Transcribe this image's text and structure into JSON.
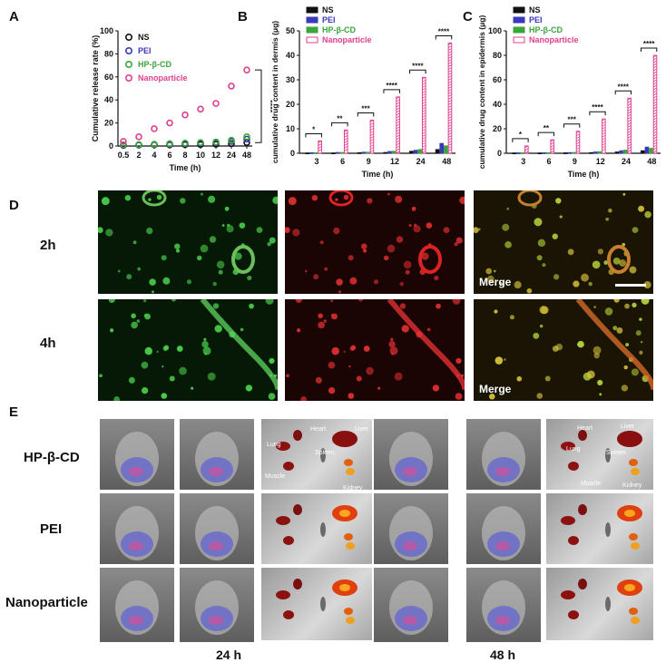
{
  "panels": {
    "A": "A",
    "B": "B",
    "C": "C",
    "D": "D",
    "E": "E"
  },
  "colors": {
    "NS": "#111111",
    "PEI": "#3a3ab8",
    "HPBCD": "#3aa63a",
    "Nanoparticle": "#e0408f"
  },
  "chart_data": [
    {
      "type": "scatter",
      "panel": "A",
      "ylabel": "Cumulative release rate (%)",
      "xlabel": "Time (h)",
      "categories": [
        "0.5",
        "2",
        "4",
        "6",
        "8",
        "10",
        "12",
        "24",
        "48"
      ],
      "ylim": [
        0,
        100
      ],
      "yticks": [
        "0",
        "20",
        "40",
        "60",
        "80",
        "100"
      ],
      "significance": "****",
      "legend": [
        "NS",
        "PEI",
        "HP-β-CD",
        "Nanoparticle"
      ],
      "series": [
        {
          "name": "NS",
          "values": [
            0.5,
            0.8,
            1,
            1,
            1.2,
            1.3,
            1.5,
            2,
            3
          ]
        },
        {
          "name": "PEI",
          "values": [
            0.8,
            1,
            1.2,
            1.5,
            2,
            2.5,
            3,
            4,
            6
          ]
        },
        {
          "name": "HP-β-CD",
          "values": [
            1,
            1.2,
            1.5,
            2,
            2.5,
            3,
            3.5,
            5,
            8
          ]
        },
        {
          "name": "Nanoparticle",
          "values": [
            4,
            8,
            15,
            20,
            27,
            32,
            37,
            52,
            66
          ]
        }
      ]
    },
    {
      "type": "bar",
      "panel": "B",
      "ylabel": "cumulative drug content in dermis (μg)",
      "xlabel": "Time (h)",
      "categories": [
        "3",
        "6",
        "9",
        "12",
        "24",
        "48"
      ],
      "ylim": [
        0,
        50
      ],
      "yticks": [
        "0",
        "10",
        "20",
        "30",
        "40",
        "50"
      ],
      "significance": [
        "*",
        "**",
        "***",
        "****",
        "****",
        "****"
      ],
      "legend": [
        "NS",
        "PEI",
        "HP-β-CD",
        "Nanoparticle"
      ],
      "series": [
        {
          "name": "NS",
          "values": [
            0.1,
            0.1,
            0.2,
            0.3,
            0.8,
            1.5
          ]
        },
        {
          "name": "PEI",
          "values": [
            0.2,
            0.3,
            0.4,
            0.7,
            1.2,
            4
          ]
        },
        {
          "name": "HP-β-CD",
          "values": [
            0.2,
            0.3,
            0.4,
            0.8,
            1.5,
            3
          ]
        },
        {
          "name": "Nanoparticle",
          "values": [
            5,
            9.5,
            13.5,
            23,
            31,
            45
          ]
        }
      ]
    },
    {
      "type": "bar",
      "panel": "C",
      "ylabel": "cumulative drug content in epidermis (μg)",
      "xlabel": "Time (h)",
      "categories": [
        "3",
        "6",
        "9",
        "12",
        "24",
        "48"
      ],
      "ylim": [
        0,
        100
      ],
      "yticks": [
        "0",
        "20",
        "40",
        "60",
        "80",
        "100"
      ],
      "significance": [
        "*",
        "**",
        "***",
        "****",
        "****",
        "****"
      ],
      "legend": [
        "NS",
        "PEI",
        "HP-β-CD",
        "Nanoparticle"
      ],
      "series": [
        {
          "name": "NS",
          "values": [
            0.2,
            0.2,
            0.3,
            0.5,
            1,
            2
          ]
        },
        {
          "name": "PEI",
          "values": [
            0.3,
            0.4,
            0.5,
            1,
            2,
            5
          ]
        },
        {
          "name": "HP-β-CD",
          "values": [
            0.3,
            0.4,
            0.6,
            1.2,
            2.5,
            4
          ]
        },
        {
          "name": "Nanoparticle",
          "values": [
            6,
            11,
            18,
            28,
            45,
            80
          ]
        }
      ]
    }
  ],
  "panelD": {
    "rows": [
      "2h",
      "4h"
    ],
    "merge": "Merge"
  },
  "panelE": {
    "rows": [
      "HP-β-CD",
      "PEI",
      "Nanoparticle"
    ],
    "times": [
      "24 h",
      "48 h"
    ],
    "organs24": {
      "heart": "Heart",
      "liver": "Liver",
      "lung": "Lung",
      "spleen": "Spleen",
      "muscle": "Muscle",
      "kidney": "Kidney"
    },
    "organs48": {
      "heart": "Heart",
      "liver": "Liver",
      "lung": "Lung",
      "spleen": "Spleen",
      "muscle": "Muscle",
      "kidney": "Kidney"
    }
  }
}
